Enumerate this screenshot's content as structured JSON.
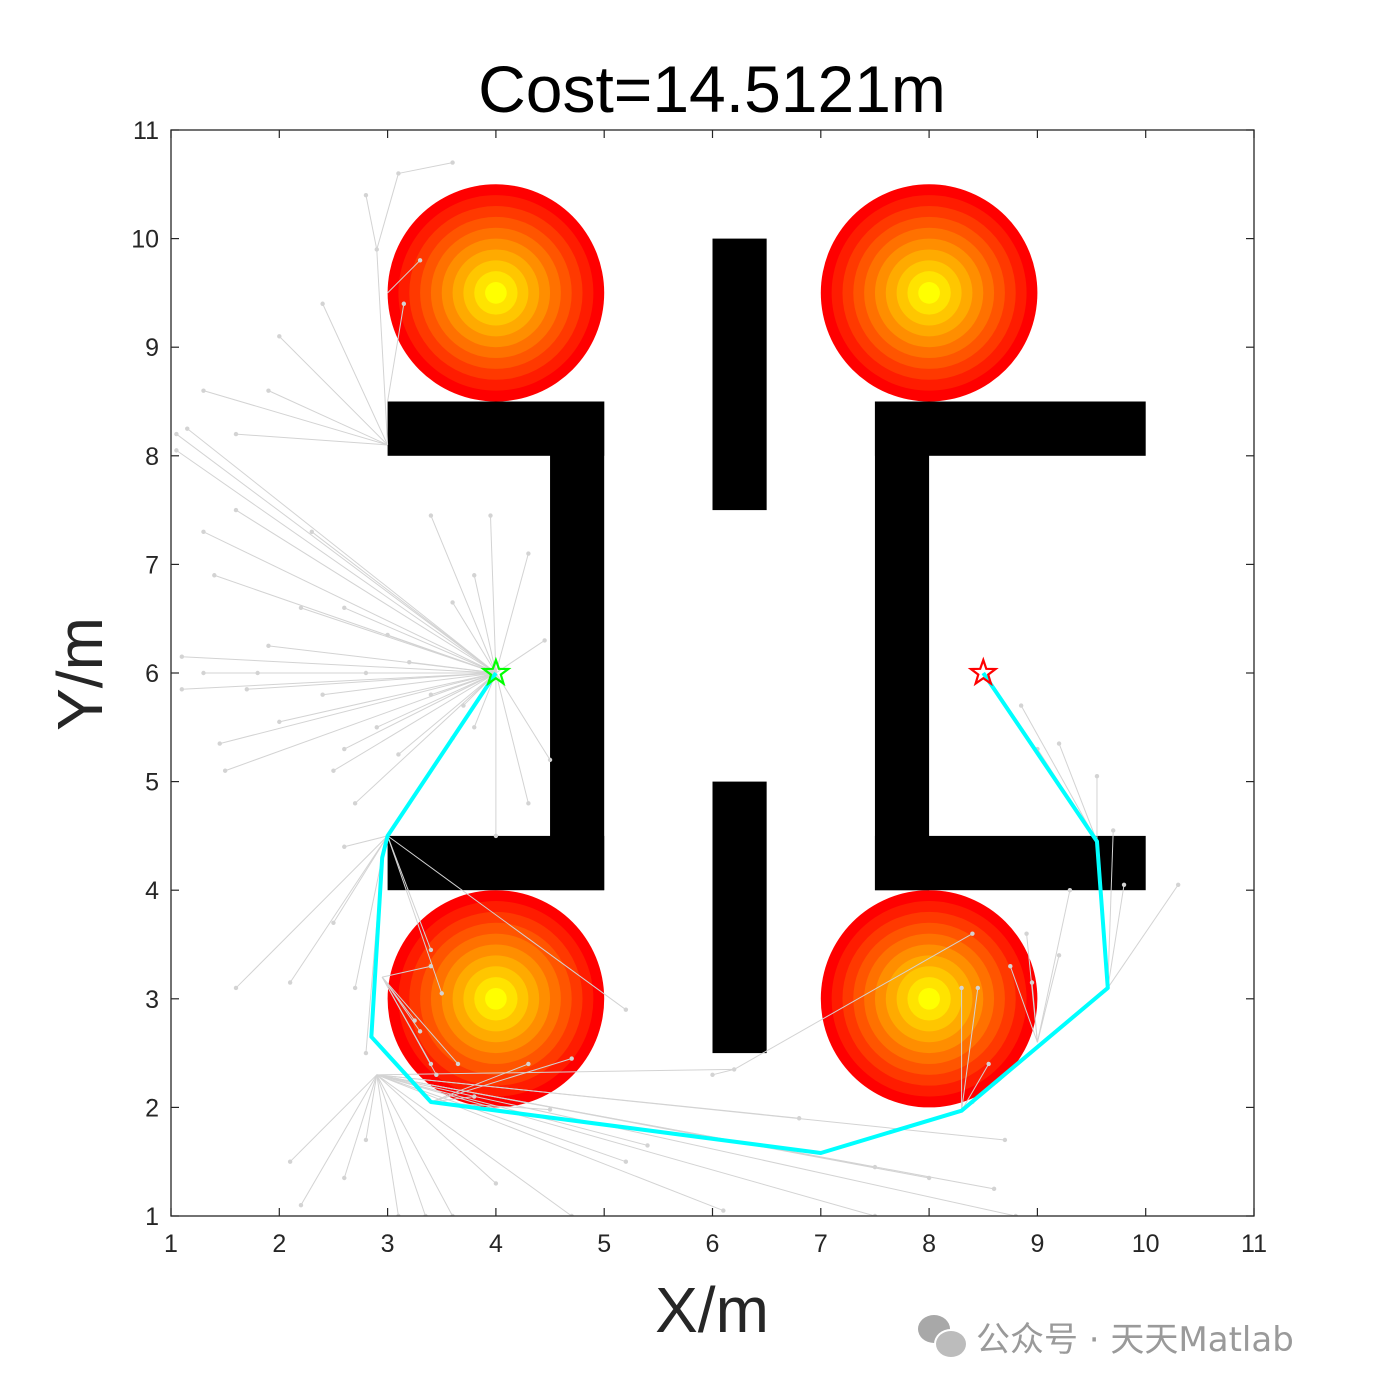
{
  "chart_data": {
    "type": "scatter",
    "title": "Cost=14.5121m",
    "xlabel": "X/m",
    "ylabel": "Y/m",
    "xlim": [
      1,
      11
    ],
    "ylim": [
      1,
      11
    ],
    "xticks": [
      1,
      2,
      3,
      4,
      5,
      6,
      7,
      8,
      9,
      10,
      11
    ],
    "yticks": [
      1,
      2,
      3,
      4,
      5,
      6,
      7,
      8,
      9,
      10,
      11
    ],
    "grid": false,
    "start": {
      "x": 4,
      "y": 6,
      "marker": "star",
      "color": "#00ff00"
    },
    "goal": {
      "x": 8.5,
      "y": 6,
      "marker": "star",
      "color": "#ff0000"
    },
    "path": {
      "color": "#00ffff",
      "points": [
        [
          4,
          6
        ],
        [
          3.0,
          4.5
        ],
        [
          2.95,
          4.3
        ],
        [
          2.85,
          2.65
        ],
        [
          3.4,
          2.05
        ],
        [
          7.0,
          1.58
        ],
        [
          8.3,
          1.97
        ],
        [
          9.65,
          3.1
        ],
        [
          9.55,
          4.45
        ],
        [
          8.5,
          6
        ]
      ]
    },
    "obstacles": {
      "color": "#000000",
      "rects": [
        {
          "x": [
            3.0,
            5.0
          ],
          "y": [
            8.0,
            8.5
          ]
        },
        {
          "x": [
            4.5,
            5.0
          ],
          "y": [
            4.0,
            8.5
          ]
        },
        {
          "x": [
            3.0,
            5.0
          ],
          "y": [
            4.0,
            4.5
          ]
        },
        {
          "x": [
            6.0,
            6.5
          ],
          "y": [
            7.5,
            10.0
          ]
        },
        {
          "x": [
            6.0,
            6.5
          ],
          "y": [
            2.5,
            5.0
          ]
        },
        {
          "x": [
            7.5,
            10.0
          ],
          "y": [
            8.0,
            8.5
          ]
        },
        {
          "x": [
            7.5,
            8.0
          ],
          "y": [
            4.0,
            8.5
          ]
        },
        {
          "x": [
            7.5,
            10.0
          ],
          "y": [
            4.0,
            4.5
          ]
        }
      ]
    },
    "threat_circles": [
      {
        "cx": 4,
        "cy": 9.5,
        "r": 1
      },
      {
        "cx": 8,
        "cy": 9.5,
        "r": 1
      },
      {
        "cx": 4,
        "cy": 3,
        "r": 1
      },
      {
        "cx": 8,
        "cy": 3,
        "r": 1
      }
    ],
    "threat_colors": [
      "#ff0000",
      "#ffff00"
    ],
    "tree_color": "#d3d3d3",
    "tree_edges": [
      [
        4,
        6,
        1.1,
        6.15
      ],
      [
        4,
        6,
        1.1,
        5.85
      ],
      [
        4,
        6,
        1.05,
        8.2
      ],
      [
        4,
        6,
        1.05,
        8.05
      ],
      [
        4,
        6,
        1.3,
        7.3
      ],
      [
        4,
        6,
        1.4,
        6.9
      ],
      [
        4,
        6,
        1.5,
        5.1
      ],
      [
        4,
        6,
        1.45,
        5.35
      ],
      [
        4,
        6,
        1.9,
        6.25
      ],
      [
        4,
        6,
        1.7,
        5.85
      ],
      [
        4,
        6,
        2.2,
        6.6
      ],
      [
        4,
        6,
        2.0,
        5.55
      ],
      [
        4,
        6,
        2.3,
        7.3
      ],
      [
        4,
        6,
        2.4,
        5.8
      ],
      [
        4,
        6,
        2.5,
        5.1
      ],
      [
        4,
        6,
        2.7,
        4.8
      ],
      [
        4,
        6,
        2.6,
        6.6
      ],
      [
        4,
        6,
        2.9,
        5.5
      ],
      [
        4,
        6,
        3.1,
        5.25
      ],
      [
        4,
        6,
        3.4,
        7.45
      ],
      [
        4,
        6,
        3.6,
        6.65
      ],
      [
        4,
        6,
        3.6,
        5.4
      ],
      [
        4,
        6,
        3.8,
        6.9
      ],
      [
        4,
        6,
        3.95,
        7.45
      ],
      [
        4,
        6,
        4.3,
        7.1
      ],
      [
        4,
        6,
        4.45,
        6.3
      ],
      [
        4,
        6,
        4.5,
        5.2
      ],
      [
        4,
        6,
        4.3,
        4.8
      ],
      [
        4,
        6,
        4.0,
        4.5
      ],
      [
        4,
        6,
        3.8,
        5.5
      ],
      [
        4,
        6,
        3.2,
        6.1
      ],
      [
        4,
        6,
        3.0,
        6.35
      ],
      [
        4,
        6,
        2.8,
        6.0
      ],
      [
        4,
        6,
        3.4,
        5.8
      ],
      [
        4,
        6,
        3.7,
        5.7
      ],
      [
        4,
        6,
        2.6,
        5.3
      ],
      [
        4,
        6,
        1.8,
        6.0
      ],
      [
        4,
        6,
        1.3,
        6.0
      ],
      [
        4,
        6,
        1.15,
        8.25
      ],
      [
        4,
        6,
        1.6,
        7.5
      ],
      [
        3.0,
        8.1,
        2.9,
        9.9
      ],
      [
        2.9,
        9.9,
        2.8,
        10.4
      ],
      [
        2.9,
        9.9,
        3.1,
        10.6
      ],
      [
        3.0,
        9.5,
        3.3,
        9.8
      ],
      [
        3.0,
        8.5,
        3.15,
        9.4
      ],
      [
        3.1,
        10.6,
        3.6,
        10.7
      ],
      [
        3.0,
        8.1,
        2.4,
        9.4
      ],
      [
        3.0,
        8.1,
        2.0,
        9.1
      ],
      [
        3.0,
        8.1,
        1.9,
        8.6
      ],
      [
        3.0,
        8.1,
        1.6,
        8.2
      ],
      [
        3.0,
        8.1,
        1.3,
        8.6
      ],
      [
        3.0,
        4.5,
        1.6,
        3.1
      ],
      [
        3.0,
        4.5,
        2.1,
        3.15
      ],
      [
        3.0,
        4.5,
        2.5,
        3.7
      ],
      [
        3.0,
        4.5,
        2.6,
        4.4
      ],
      [
        3.0,
        4.5,
        3.4,
        3.45
      ],
      [
        3.0,
        4.5,
        3.5,
        3.05
      ],
      [
        3.0,
        4.5,
        5.2,
        2.9
      ],
      [
        2.95,
        4.3,
        2.7,
        3.1
      ],
      [
        2.95,
        4.3,
        2.8,
        2.5
      ],
      [
        2.95,
        3.2,
        3.25,
        2.8
      ],
      [
        2.95,
        3.2,
        3.3,
        2.7
      ],
      [
        2.95,
        3.2,
        3.4,
        2.4
      ],
      [
        2.95,
        3.2,
        3.4,
        3.3
      ],
      [
        2.95,
        3.2,
        3.65,
        2.4
      ],
      [
        2.95,
        3.2,
        3.45,
        2.3
      ],
      [
        3.4,
        2.05,
        3.8,
        2.1
      ],
      [
        3.4,
        2.05,
        4.3,
        2.4
      ],
      [
        3.4,
        2.05,
        4.7,
        2.45
      ],
      [
        3.4,
        2.05,
        4.5,
        1.98
      ],
      [
        2.9,
        2.3,
        2.1,
        1.5
      ],
      [
        2.9,
        2.3,
        2.2,
        1.1
      ],
      [
        2.9,
        2.3,
        2.6,
        1.35
      ],
      [
        2.9,
        2.3,
        2.8,
        1.7
      ],
      [
        2.9,
        2.3,
        3.1,
        1.0
      ],
      [
        2.9,
        2.3,
        3.35,
        1.0
      ],
      [
        2.9,
        2.3,
        3.6,
        1.0
      ],
      [
        2.9,
        2.3,
        4.0,
        1.3
      ],
      [
        2.9,
        2.3,
        4.7,
        1.0
      ],
      [
        2.9,
        2.3,
        5.2,
        1.5
      ],
      [
        2.9,
        2.3,
        5.4,
        1.65
      ],
      [
        2.9,
        2.3,
        6.1,
        1.05
      ],
      [
        2.9,
        2.3,
        6.8,
        1.9
      ],
      [
        2.9,
        2.3,
        7.5,
        1.45
      ],
      [
        2.9,
        2.3,
        8.0,
        1.35
      ],
      [
        2.9,
        2.3,
        8.6,
        1.25
      ],
      [
        2.9,
        2.3,
        8.8,
        1.0
      ],
      [
        2.9,
        2.3,
        7.5,
        1.0
      ],
      [
        2.9,
        2.3,
        8.7,
        1.7
      ],
      [
        2.9,
        2.3,
        6.2,
        2.35
      ],
      [
        6.2,
        2.35,
        8.4,
        3.6
      ],
      [
        6.2,
        2.35,
        6.0,
        2.3
      ],
      [
        8.3,
        1.97,
        8.3,
        3.1
      ],
      [
        8.3,
        1.97,
        8.45,
        3.1
      ],
      [
        8.3,
        1.97,
        8.55,
        2.4
      ],
      [
        8.3,
        1.97,
        8.4,
        2.05
      ],
      [
        9.0,
        2.6,
        8.75,
        3.3
      ],
      [
        9.0,
        2.6,
        8.95,
        3.15
      ],
      [
        9.0,
        2.6,
        8.9,
        3.6
      ],
      [
        9.0,
        2.6,
        9.2,
        3.4
      ],
      [
        9.0,
        2.6,
        9.3,
        4.0
      ],
      [
        9.65,
        3.1,
        10.3,
        4.05
      ],
      [
        9.65,
        3.1,
        9.8,
        4.05
      ],
      [
        9.65,
        3.1,
        9.7,
        4.55
      ],
      [
        9.55,
        4.45,
        9.55,
        5.05
      ],
      [
        9.55,
        4.45,
        9.2,
        5.35
      ],
      [
        9.55,
        4.45,
        8.85,
        5.7
      ],
      [
        9.55,
        4.45,
        9.0,
        5.3
      ]
    ]
  }
}
